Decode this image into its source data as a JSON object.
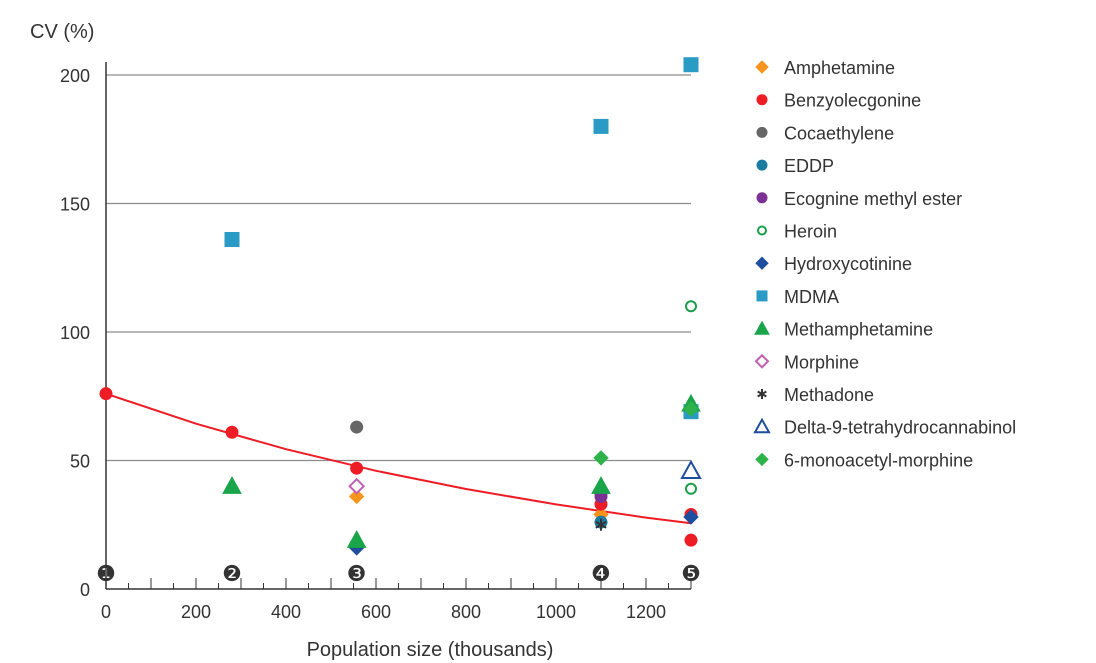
{
  "chart_data": {
    "type": "scatter",
    "ylabel": "CV (%)",
    "xlabel": "Population size (thousands)",
    "xlim": [
      0,
      1300
    ],
    "ylim": [
      0,
      210
    ],
    "x_ticks": [
      0,
      200,
      400,
      600,
      800,
      1000,
      1200
    ],
    "y_ticks": [
      0,
      50,
      100,
      150,
      200
    ],
    "grid": "horizontal",
    "legend_position": "right",
    "site_markers": [
      {
        "label": "❶",
        "x": 0
      },
      {
        "label": "❷",
        "x": 280
      },
      {
        "label": "❸",
        "x": 557
      },
      {
        "label": "❹",
        "x": 1100
      },
      {
        "label": "❺",
        "x": 1300
      }
    ],
    "fit_curve": {
      "color": "#ee1c25",
      "series": "Benzyolecgonine",
      "points": [
        [
          0,
          76
        ],
        [
          200,
          64.3
        ],
        [
          400,
          54.4
        ],
        [
          600,
          46
        ],
        [
          800,
          38.9
        ],
        [
          1000,
          32.9
        ],
        [
          1200,
          27.8
        ],
        [
          1300,
          25.6
        ]
      ]
    },
    "series": [
      {
        "name": "Amphetamine",
        "marker": "diamond",
        "color": "#f7941d",
        "filled": true,
        "points": [
          [
            557,
            36
          ],
          [
            1100,
            29
          ]
        ]
      },
      {
        "name": "Benzyolecgonine",
        "marker": "circle",
        "color": "#ee1c25",
        "filled": true,
        "points": [
          [
            0,
            76
          ],
          [
            280,
            61
          ],
          [
            557,
            47
          ],
          [
            1100,
            33
          ],
          [
            1300,
            29
          ],
          [
            1300,
            19
          ]
        ]
      },
      {
        "name": "Cocaethylene",
        "marker": "circle",
        "color": "#666666",
        "filled": true,
        "points": [
          [
            557,
            63
          ],
          [
            1100,
            37
          ]
        ]
      },
      {
        "name": "EDDP",
        "marker": "circle",
        "color": "#1a7ca0",
        "filled": true,
        "points": [
          [
            1100,
            26
          ]
        ]
      },
      {
        "name": "Ecognine methyl ester",
        "marker": "circle",
        "color": "#7b3294",
        "filled": true,
        "points": [
          [
            1100,
            36
          ]
        ]
      },
      {
        "name": "Heroin",
        "marker": "circle",
        "color": "#1b9e4b",
        "filled": false,
        "points": [
          [
            1300,
            110
          ],
          [
            1300,
            39
          ]
        ]
      },
      {
        "name": "Hydroxycotinine",
        "marker": "diamond",
        "color": "#1f4e9e",
        "filled": true,
        "points": [
          [
            557,
            16
          ],
          [
            1300,
            28
          ]
        ]
      },
      {
        "name": "MDMA",
        "marker": "square",
        "color": "#2a9bc4",
        "filled": true,
        "points": [
          [
            280,
            136
          ],
          [
            1100,
            180
          ],
          [
            1300,
            204
          ],
          [
            1300,
            69
          ]
        ]
      },
      {
        "name": "Methamphetamine",
        "marker": "triangle",
        "color": "#1aa54b",
        "filled": true,
        "points": [
          [
            280,
            40
          ],
          [
            557,
            19
          ],
          [
            1100,
            40
          ],
          [
            1300,
            72
          ]
        ]
      },
      {
        "name": "Morphine",
        "marker": "diamond",
        "color": "#c060b0",
        "filled": false,
        "points": [
          [
            557,
            40
          ]
        ]
      },
      {
        "name": "Methadone",
        "marker": "star",
        "color": "#333333",
        "filled": true,
        "points": [
          [
            1100,
            25
          ]
        ]
      },
      {
        "name": "Delta-9-tetrahydrocannabinol",
        "marker": "triangle",
        "color": "#1f4e9e",
        "filled": false,
        "points": [
          [
            1300,
            46
          ]
        ]
      },
      {
        "name": "6-monoacetyl-morphine",
        "marker": "diamond",
        "color": "#2db34a",
        "filled": true,
        "points": [
          [
            1100,
            51
          ],
          [
            1300,
            70
          ]
        ]
      }
    ]
  }
}
